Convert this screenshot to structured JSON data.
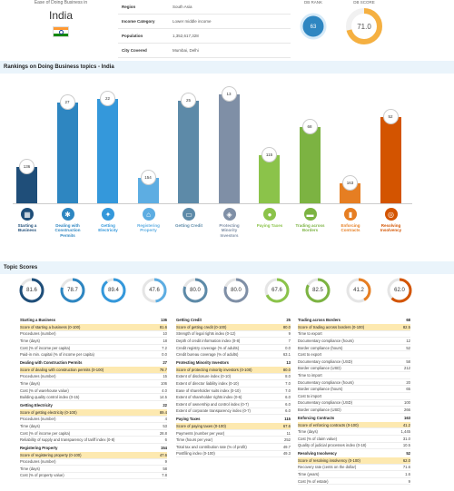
{
  "header": {
    "country_label": "Ease of Doing Business in",
    "country": "India",
    "dbrank_label": "DB RANK",
    "dbscore_label": "DB SCORE",
    "db_rank": "63",
    "db_score": "71.0",
    "db_score_fraction": 0.71
  },
  "info": [
    {
      "k": "Region",
      "v": "South Asia"
    },
    {
      "k": "Income Category",
      "v": "Lower middle income"
    },
    {
      "k": "Population",
      "v": "1,352,617,328"
    },
    {
      "k": "City Covered",
      "v": "Mumbai, Delhi"
    }
  ],
  "rankings_title": "Rankings on Doing Business topics - India",
  "rankings": [
    {
      "name": "Starting a Business",
      "rank": 136,
      "color": "#1f4e79",
      "icon": "building-icon"
    },
    {
      "name": "Dealing with Construction Permits",
      "rank": 27,
      "color": "#2e86c1",
      "icon": "wrench-icon"
    },
    {
      "name": "Getting Electricity",
      "rank": 22,
      "color": "#3498db",
      "icon": "bulb-icon"
    },
    {
      "name": "Registering Property",
      "rank": 154,
      "color": "#5dade2",
      "icon": "house-icon"
    },
    {
      "name": "Getting Credit",
      "rank": 25,
      "color": "#5d8aa8",
      "icon": "card-icon"
    },
    {
      "name": "Protecting Minority Investors",
      "rank": 13,
      "color": "#7f8fa6",
      "icon": "shield-icon"
    },
    {
      "name": "Paying Taxes",
      "rank": 115,
      "color": "#8bc34a",
      "icon": "coins-icon"
    },
    {
      "name": "Trading across Borders",
      "rank": 68,
      "color": "#7cb342",
      "icon": "truck-icon"
    },
    {
      "name": "Enforcing Contracts",
      "rank": 163,
      "color": "#e67e22",
      "icon": "gavel-icon"
    },
    {
      "name": "Resolving Insolvency",
      "rank": 52,
      "color": "#d35400",
      "icon": "lifebuoy-icon"
    }
  ],
  "topic_scores_title": "Topic Scores",
  "scores": [
    {
      "v": "81.6",
      "c": "#1f4e79"
    },
    {
      "v": "78.7",
      "c": "#2e86c1"
    },
    {
      "v": "89.4",
      "c": "#3498db"
    },
    {
      "v": "47.6",
      "c": "#5dade2"
    },
    {
      "v": "80.0",
      "c": "#5d8aa8"
    },
    {
      "v": "80.0",
      "c": "#7f8fa6"
    },
    {
      "v": "67.6",
      "c": "#8bc34a"
    },
    {
      "v": "82.5",
      "c": "#7cb342"
    },
    {
      "v": "41.2",
      "c": "#e67e22"
    },
    {
      "v": "62.0",
      "c": "#d35400"
    }
  ],
  "col1": [
    {
      "h": "Starting a Business",
      "hv": "136",
      "rows": [
        [
          "Score of starting a business (0-100)",
          "81.6"
        ],
        [
          "Procedures (number)",
          "10"
        ],
        [
          "Time (days)",
          "18"
        ],
        [
          "Cost (% of income per capita)",
          "7.2"
        ],
        [
          "Paid-in min. capital (% of income per capita)",
          "0.0"
        ]
      ]
    },
    {
      "h": "Dealing with Construction Permits",
      "hv": "27",
      "rows": [
        [
          "Score of dealing with construction permits (0-100)",
          "78.7"
        ],
        [
          "Procedures (number)",
          "15"
        ],
        [
          "Time (days)",
          "106"
        ],
        [
          "Cost (% of warehouse value)",
          "4.0"
        ],
        [
          "Building quality control index (0-15)",
          "14.5"
        ]
      ]
    },
    {
      "h": "Getting Electricity",
      "hv": "22",
      "rows": [
        [
          "Score of getting electricity (0-100)",
          "89.4"
        ],
        [
          "Procedures (number)",
          "4"
        ],
        [
          "Time (days)",
          "53"
        ],
        [
          "Cost (% of income per capita)",
          "28.8"
        ],
        [
          "Reliability of supply and transparency of tariff index (0-8)",
          "6"
        ]
      ]
    },
    {
      "h": "Registering Property",
      "hv": "154",
      "rows": [
        [
          "Score of registering property (0-100)",
          "47.6"
        ],
        [
          "Procedures (number)",
          "9"
        ],
        [
          "Time (days)",
          "58"
        ],
        [
          "Cost (% of property value)",
          "7.8"
        ]
      ]
    }
  ],
  "col2": [
    {
      "h": "Getting Credit",
      "hv": "25",
      "rows": [
        [
          "Score of getting credit (0-100)",
          "80.0"
        ],
        [
          "Strength of legal rights index (0-12)",
          "9"
        ],
        [
          "Depth of credit information index (0-8)",
          "7"
        ],
        [
          "Credit registry coverage (% of adults)",
          "0.0"
        ],
        [
          "Credit bureau coverage (% of adults)",
          "63.1"
        ]
      ]
    },
    {
      "h": "Protecting Minority Investors",
      "hv": "13",
      "rows": [
        [
          "Score of protecting minority investors (0-100)",
          "80.0"
        ],
        [
          "Extent of disclosure index (0-10)",
          "8.0"
        ],
        [
          "Extent of director liability index (0-10)",
          "7.0"
        ],
        [
          "Ease of shareholder suits index (0-10)",
          "7.0"
        ],
        [
          "Extent of shareholder rights index (0-6)",
          "6.0"
        ],
        [
          "Extent of ownership and control index (0-7)",
          "6.0"
        ],
        [
          "Extent of corporate transparency index (0-7)",
          "6.0"
        ]
      ]
    },
    {
      "h": "Paying Taxes",
      "hv": "115",
      "rows": [
        [
          "Score of paying taxes (0-100)",
          "67.6"
        ],
        [
          "Payments (number per year)",
          "11"
        ],
        [
          "Time (hours per year)",
          "252"
        ],
        [
          "Total tax and contribution rate (% of profit)",
          "49.7"
        ],
        [
          "Postfiling index (0-100)",
          "49.3"
        ]
      ]
    }
  ],
  "col3": [
    {
      "h": "Trading across Borders",
      "hv": "68",
      "rows": [
        [
          "Score of trading across borders (0-100)",
          "82.5"
        ],
        [
          "Time to export",
          ""
        ],
        [
          "Documentary compliance (hours)",
          "12"
        ],
        [
          "Border compliance (hours)",
          "52"
        ],
        [
          "Cost to export",
          ""
        ],
        [
          "Documentary compliance (USD)",
          "58"
        ],
        [
          "Border compliance (USD)",
          "212"
        ],
        [
          "Time to import",
          ""
        ],
        [
          "Documentary compliance (hours)",
          "20"
        ],
        [
          "Border compliance (hours)",
          "65"
        ],
        [
          "Cost to import",
          ""
        ],
        [
          "Documentary compliance (USD)",
          "100"
        ],
        [
          "Border compliance (USD)",
          "266"
        ]
      ]
    },
    {
      "h": "Enforcing Contracts",
      "hv": "163",
      "rows": [
        [
          "Score of enforcing contracts (0-100)",
          "41.2"
        ],
        [
          "Time (days)",
          "1,445"
        ],
        [
          "Cost (% of claim value)",
          "31.0"
        ],
        [
          "Quality of judicial processes index (0-18)",
          "10.5"
        ]
      ]
    },
    {
      "h": "Resolving Insolvency",
      "hv": "52",
      "rows": [
        [
          "Score of resolving insolvency (0-100)",
          "62.0"
        ],
        [
          "Recovery rate (cents on the dollar)",
          "71.6"
        ],
        [
          "Time (years)",
          "1.6"
        ],
        [
          "Cost (% of estate)",
          "9"
        ]
      ]
    }
  ]
}
